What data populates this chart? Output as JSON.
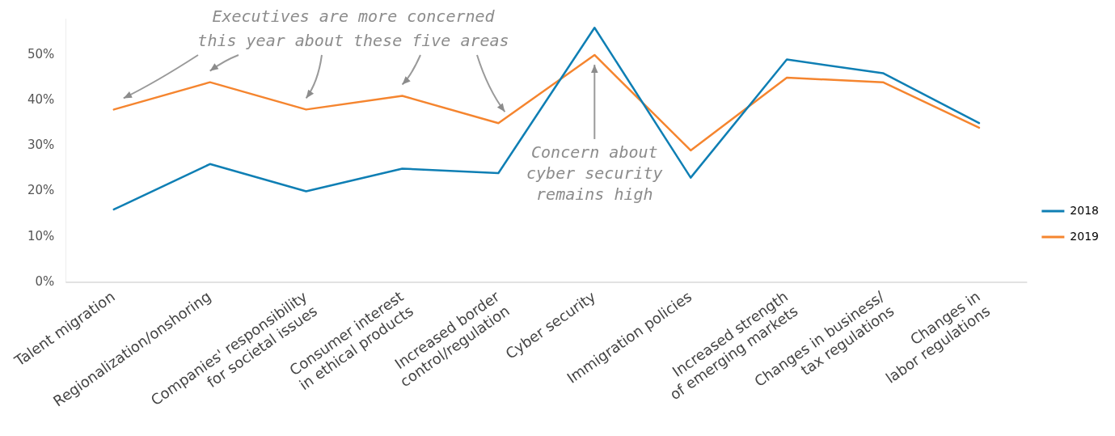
{
  "chart_data": {
    "type": "line",
    "categories": [
      "Talent migration",
      "Regionalization/onshoring",
      "Companies' responsibility\nfor societal issues",
      "Consumer interest\nin ethical products",
      "Increased border\ncontrol/regulation",
      "Cyber security",
      "Immigration policies",
      "Increased strength\nof emerging markets",
      "Changes in business/\ntax regulations",
      "Changes in\nlabor regulations"
    ],
    "series": [
      {
        "name": "2018",
        "color": "#0f7fb4",
        "values": [
          16,
          26,
          20,
          25,
          24,
          56,
          23,
          49,
          46,
          35
        ]
      },
      {
        "name": "2019",
        "color": "#f5852f",
        "values": [
          38,
          44,
          38,
          41,
          35,
          50,
          29,
          45,
          44,
          34
        ]
      }
    ],
    "ylim": [
      0,
      58
    ],
    "yticks": [
      {
        "value": 0,
        "label": "0%"
      },
      {
        "value": 10,
        "label": "10%"
      },
      {
        "value": 20,
        "label": "20%"
      },
      {
        "value": 30,
        "label": "30%"
      },
      {
        "value": 40,
        "label": "40%"
      },
      {
        "value": 50,
        "label": "50%"
      }
    ],
    "grid": false,
    "legend": "right",
    "marker": "none",
    "line_style": "solid",
    "annotations": [
      "Executives are more concerned\nthis year about these five areas",
      "Concern about\ncyber security\nremains high"
    ]
  }
}
